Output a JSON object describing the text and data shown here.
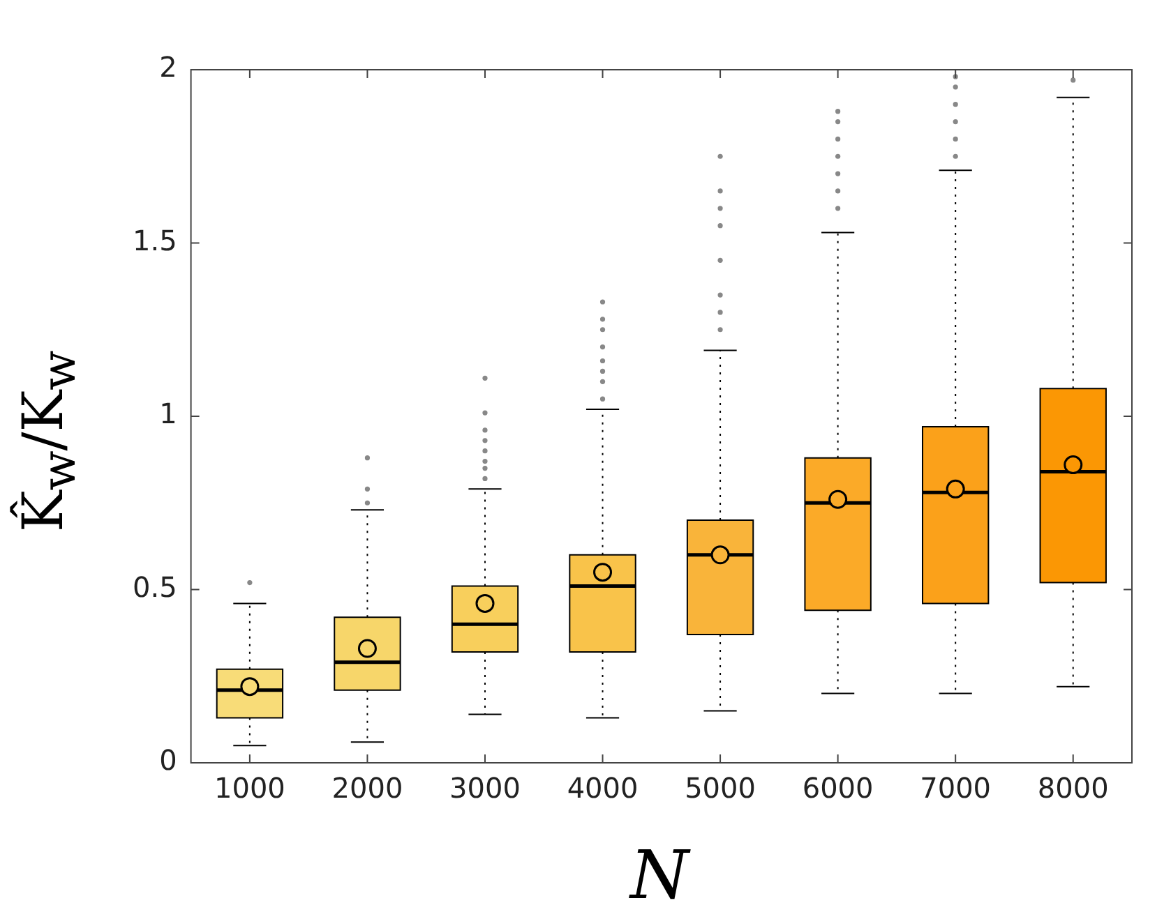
{
  "chart_data": {
    "type": "box",
    "xlabel": "N",
    "ylabel": "K̂$_{w}$/K$_{w}$",
    "categories": [
      "1000",
      "2000",
      "3000",
      "4000",
      "5000",
      "6000",
      "7000",
      "8000"
    ],
    "colors": [
      "#f8dc78",
      "#f7d66a",
      "#f8cf5c",
      "#f9c34a",
      "#f9b43a",
      "#fbaa28",
      "#fba11a",
      "#fb9704"
    ],
    "ylim": [
      0,
      2
    ],
    "yticks": [
      0,
      0.5,
      1,
      1.5,
      2
    ],
    "grid": false,
    "legend": false,
    "boxes": [
      {
        "low": 0.05,
        "q1": 0.13,
        "median": 0.21,
        "q3": 0.27,
        "high": 0.46,
        "mean": 0.22,
        "outliers": [
          0.52
        ]
      },
      {
        "low": 0.06,
        "q1": 0.21,
        "median": 0.29,
        "q3": 0.42,
        "high": 0.73,
        "mean": 0.33,
        "outliers": [
          0.75,
          0.79,
          0.88
        ]
      },
      {
        "low": 0.14,
        "q1": 0.32,
        "median": 0.4,
        "q3": 0.51,
        "high": 0.79,
        "mean": 0.46,
        "outliers": [
          0.82,
          0.85,
          0.87,
          0.9,
          0.93,
          0.96,
          1.01,
          1.11
        ]
      },
      {
        "low": 0.13,
        "q1": 0.32,
        "median": 0.51,
        "q3": 0.6,
        "high": 1.02,
        "mean": 0.55,
        "outliers": [
          1.05,
          1.1,
          1.13,
          1.16,
          1.2,
          1.25,
          1.28,
          1.33
        ]
      },
      {
        "low": 0.15,
        "q1": 0.37,
        "median": 0.6,
        "q3": 0.7,
        "high": 1.19,
        "mean": 0.6,
        "outliers": [
          1.25,
          1.3,
          1.35,
          1.45,
          1.55,
          1.6,
          1.65,
          1.75
        ]
      },
      {
        "low": 0.2,
        "q1": 0.44,
        "median": 0.75,
        "q3": 0.88,
        "high": 1.53,
        "mean": 0.76,
        "outliers": [
          1.6,
          1.65,
          1.7,
          1.75,
          1.8,
          1.85,
          1.88
        ]
      },
      {
        "low": 0.2,
        "q1": 0.46,
        "median": 0.78,
        "q3": 0.97,
        "high": 1.71,
        "mean": 0.79,
        "outliers": [
          1.75,
          1.8,
          1.85,
          1.9,
          1.95,
          1.98
        ]
      },
      {
        "low": 0.22,
        "q1": 0.52,
        "median": 0.84,
        "q3": 1.08,
        "high": 1.92,
        "mean": 0.86,
        "outliers": [
          1.97
        ]
      }
    ]
  }
}
